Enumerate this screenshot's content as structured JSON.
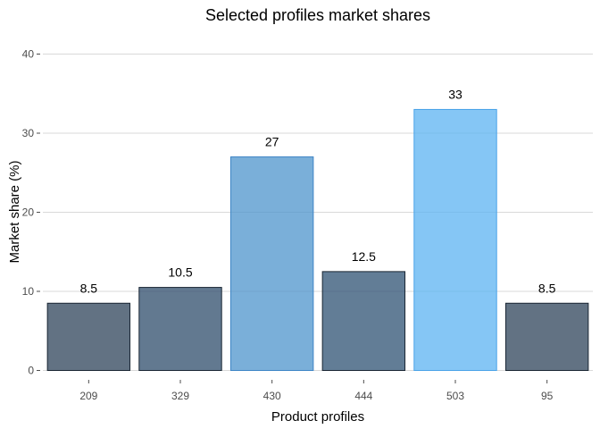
{
  "chart_data": {
    "type": "bar",
    "title": "Selected profiles market shares",
    "xlabel": "Product profiles",
    "ylabel": "Market share (%)",
    "categories": [
      "209",
      "329",
      "430",
      "444",
      "503",
      "95"
    ],
    "values": [
      8.5,
      10.5,
      27,
      12.5,
      33,
      8.5
    ],
    "value_labels": [
      "8.5",
      "10.5",
      "27",
      "12.5",
      "33",
      "8.5"
    ],
    "bar_colors": [
      "#2e4359",
      "#2e4c6b",
      "#4d94cc",
      "#2e5173",
      "#5cb3f2",
      "#2e4359"
    ],
    "bar_edge_colors": [
      "#1a2633",
      "#1a2633",
      "#3d85c6",
      "#1a2633",
      "#4aa3e8",
      "#1a2633"
    ],
    "ylim": [
      0,
      40
    ],
    "yticks": [
      0,
      10,
      20,
      30,
      40
    ],
    "grid": true,
    "legend": "none"
  }
}
